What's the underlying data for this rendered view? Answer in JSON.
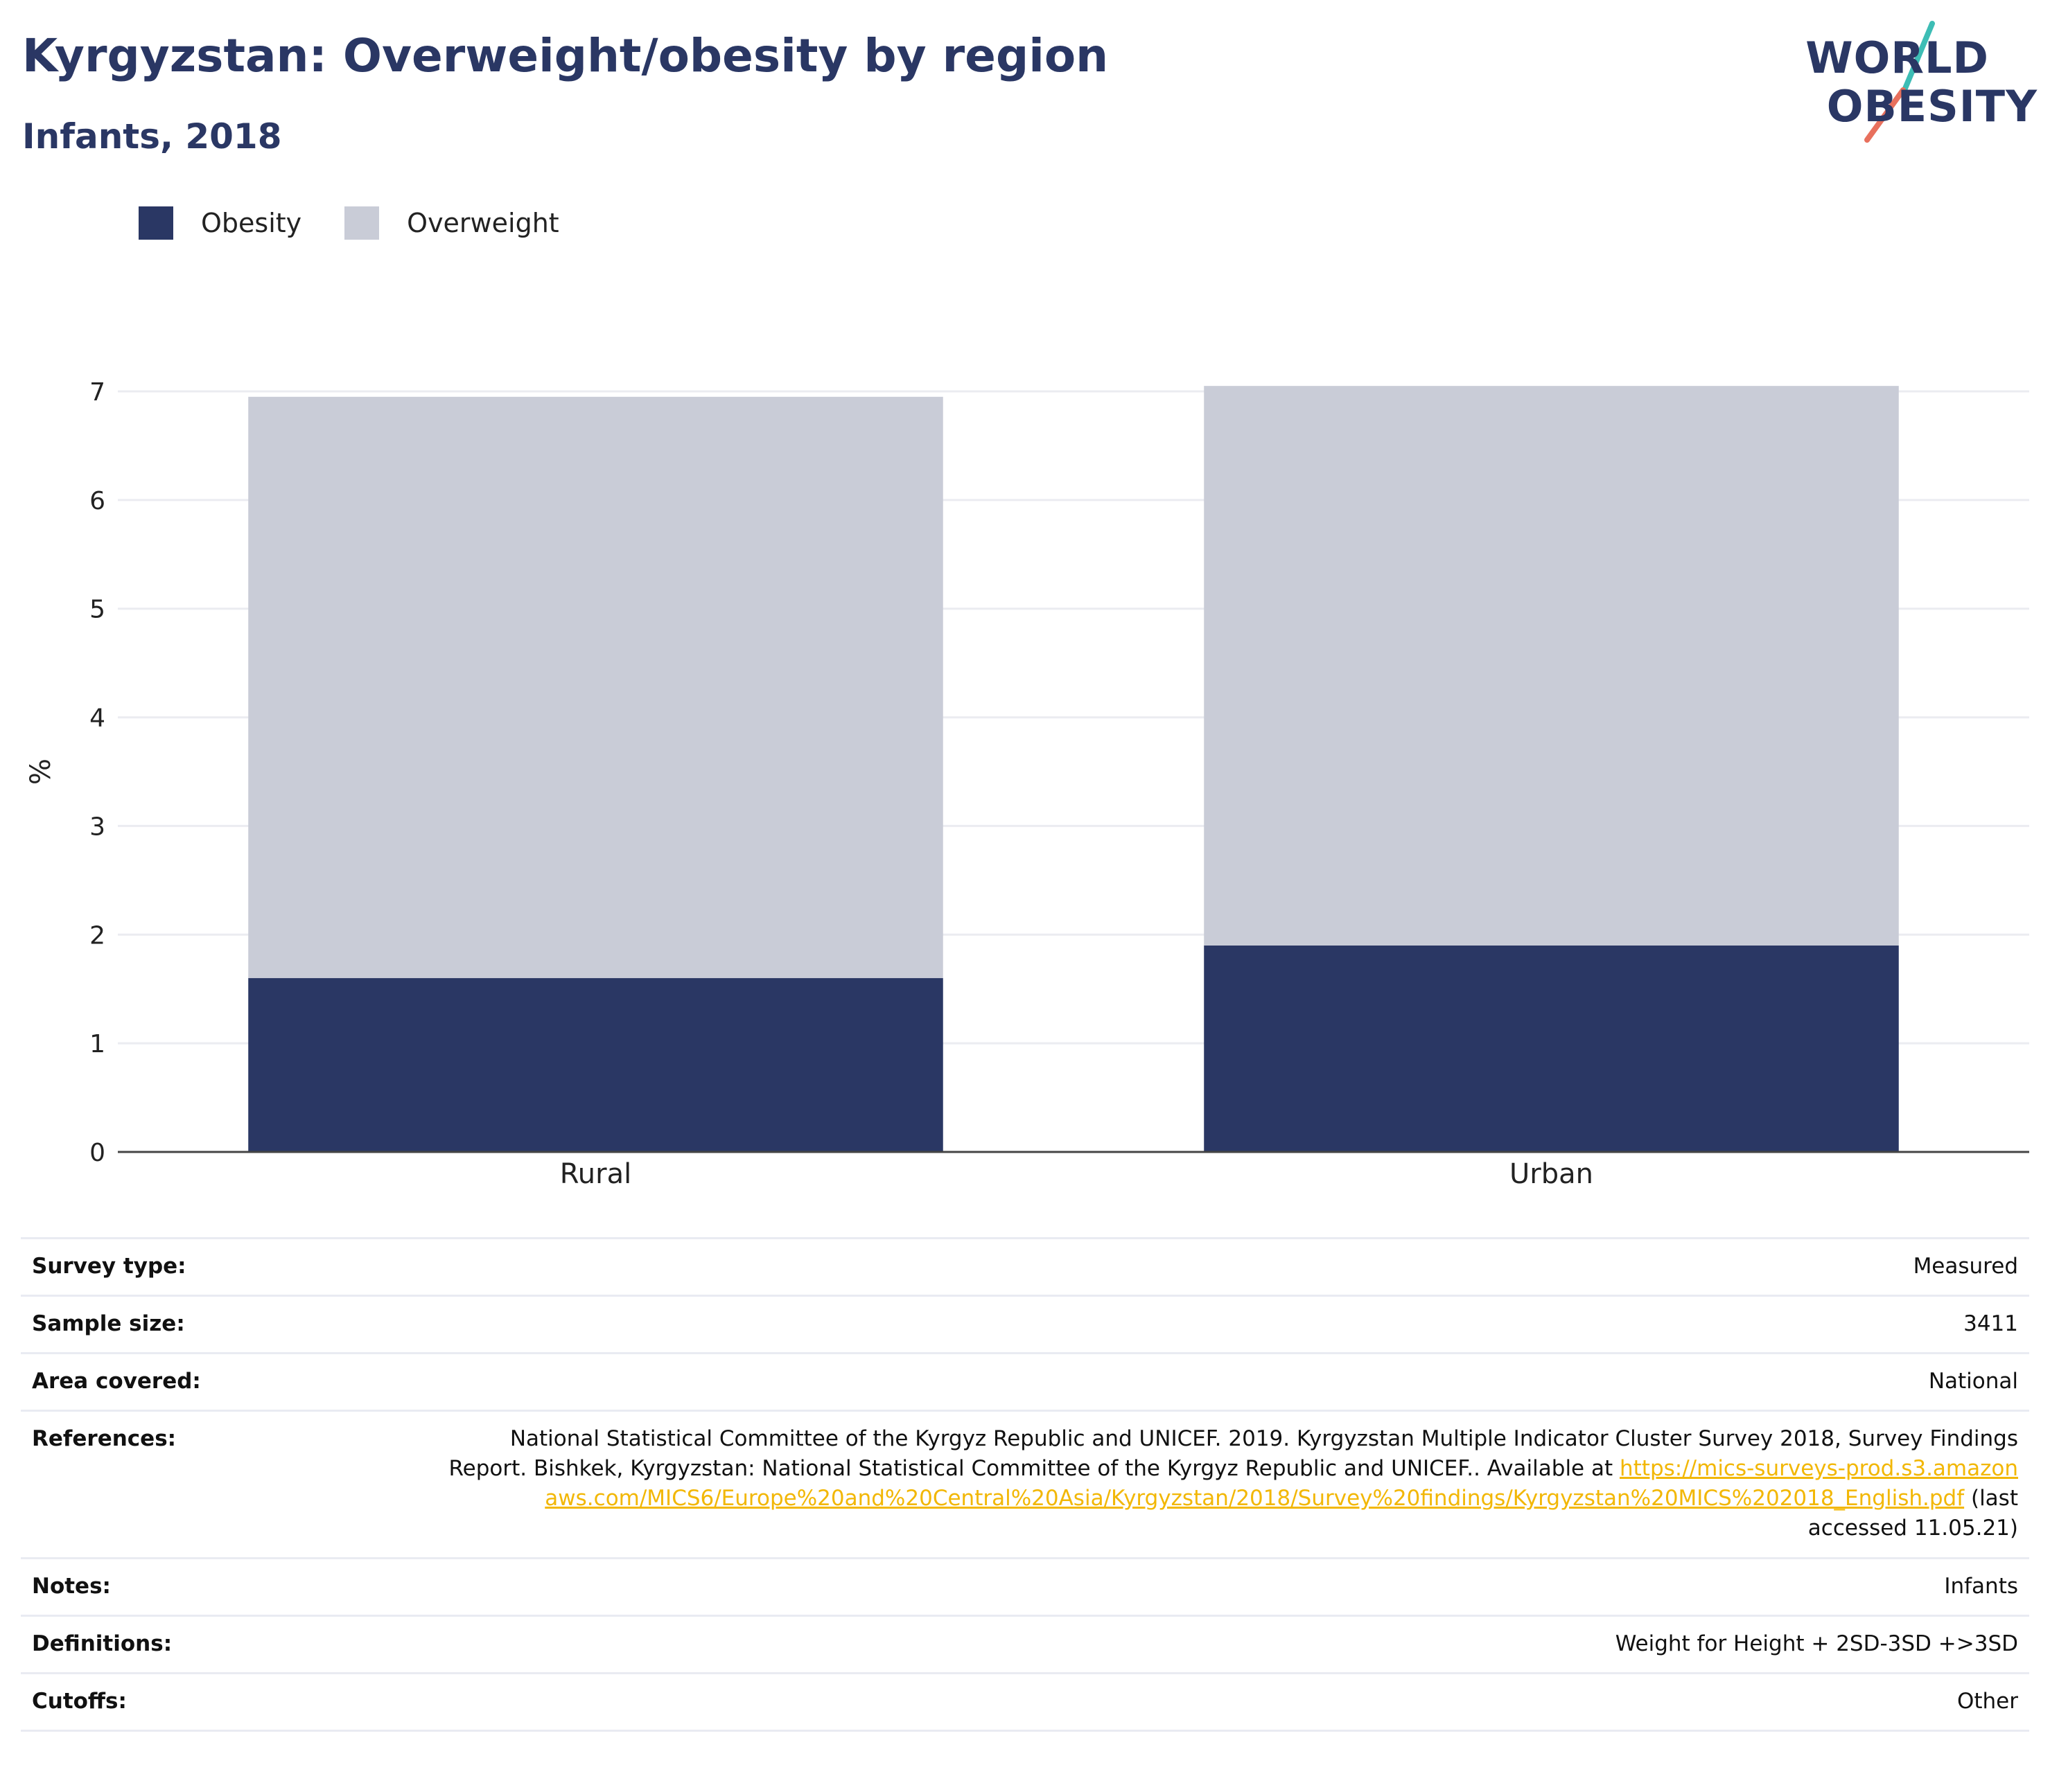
{
  "header": {
    "title": "Kyrgyzstan: Overweight/obesity by region",
    "subtitle": "Infants, 2018"
  },
  "logo": {
    "line1": "WORLD",
    "line2": "OBESITY",
    "colors": {
      "text": "#2a3764",
      "teal": "#3dbdb5",
      "coral": "#e8705d"
    }
  },
  "chart_data": {
    "type": "bar",
    "stacked": true,
    "categories": [
      "Rural",
      "Urban"
    ],
    "series": [
      {
        "name": "Obesity",
        "values": [
          1.6,
          1.9
        ],
        "color": "#2a3764"
      },
      {
        "name": "Overweight",
        "values": [
          5.35,
          5.15
        ],
        "color": "#c9ccd7"
      }
    ],
    "title": "Kyrgyzstan: Overweight/obesity by region",
    "subtitle": "Infants, 2018",
    "xlabel": "",
    "ylabel": "%",
    "ylim": [
      0,
      7
    ],
    "yticks": [
      0,
      1,
      2,
      3,
      4,
      5,
      6,
      7
    ],
    "grid": true,
    "legend_position": "top-left"
  },
  "info": {
    "rows": [
      {
        "key": "Survey type:",
        "value": "Measured"
      },
      {
        "key": "Sample size:",
        "value": "3411"
      },
      {
        "key": "Area covered:",
        "value": "National"
      },
      {
        "key": "References:",
        "value_prefix": "National Statistical Committee of the Kyrgyz Republic and UNICEF. 2019. Kyrgyzstan Multiple Indicator Cluster Survey 2018, Survey Findings Report. Bishkek, Kyrgyzstan: National Statistical Committee of the Kyrgyz Republic and UNICEF.. Available at ",
        "link": "https://mics-surveys-prod.s3.amazonaws.com/MICS6/Europe%20and%20Central%20Asia/Kyrgyzstan/2018/Survey%20findings/Kyrgyzstan%20MICS%202018_English.pdf",
        "value_suffix": " (last accessed 11.05.21)"
      },
      {
        "key": "Notes:",
        "value": "Infants"
      },
      {
        "key": "Definitions:",
        "value": "Weight for Height + 2SD-3SD +>3SD"
      },
      {
        "key": "Cutoffs:",
        "value": "Other"
      }
    ]
  }
}
